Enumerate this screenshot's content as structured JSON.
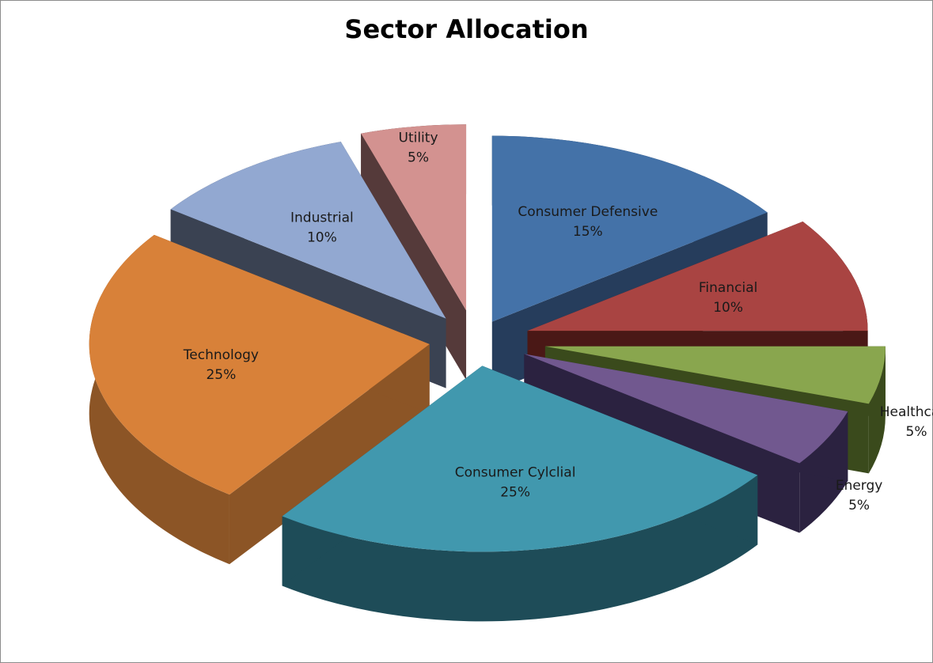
{
  "chart_data": {
    "type": "pie",
    "title": "Sector Allocation",
    "three_d": true,
    "exploded": true,
    "slices": [
      {
        "label": "Consumer Defensive",
        "value": 15,
        "value_label": "15%",
        "color": "#4472a8",
        "side_color": "#263d5c"
      },
      {
        "label": "Financial",
        "value": 10,
        "value_label": "10%",
        "color": "#a94442",
        "side_color": "#4a1816"
      },
      {
        "label": "Healthcare",
        "value": 5,
        "value_label": "5%",
        "color": "#89a64e",
        "side_color": "#3a4a1c"
      },
      {
        "label": "Energy",
        "value": 5,
        "value_label": "5%",
        "color": "#71588f",
        "side_color": "#2b2240"
      },
      {
        "label": "Consumer Cylclial",
        "value": 25,
        "value_label": "25%",
        "color": "#4198ae",
        "side_color": "#1e4c58"
      },
      {
        "label": "Technology",
        "value": 25,
        "value_label": "25%",
        "color": "#d88139",
        "side_color": "#8c5526"
      },
      {
        "label": "Industrial",
        "value": 10,
        "value_label": "10%",
        "color": "#92a8d1",
        "side_color": "#3a4252"
      },
      {
        "label": "Utility",
        "value": 5,
        "value_label": "5%",
        "color": "#d39290",
        "side_color": "#553a3a"
      }
    ]
  }
}
